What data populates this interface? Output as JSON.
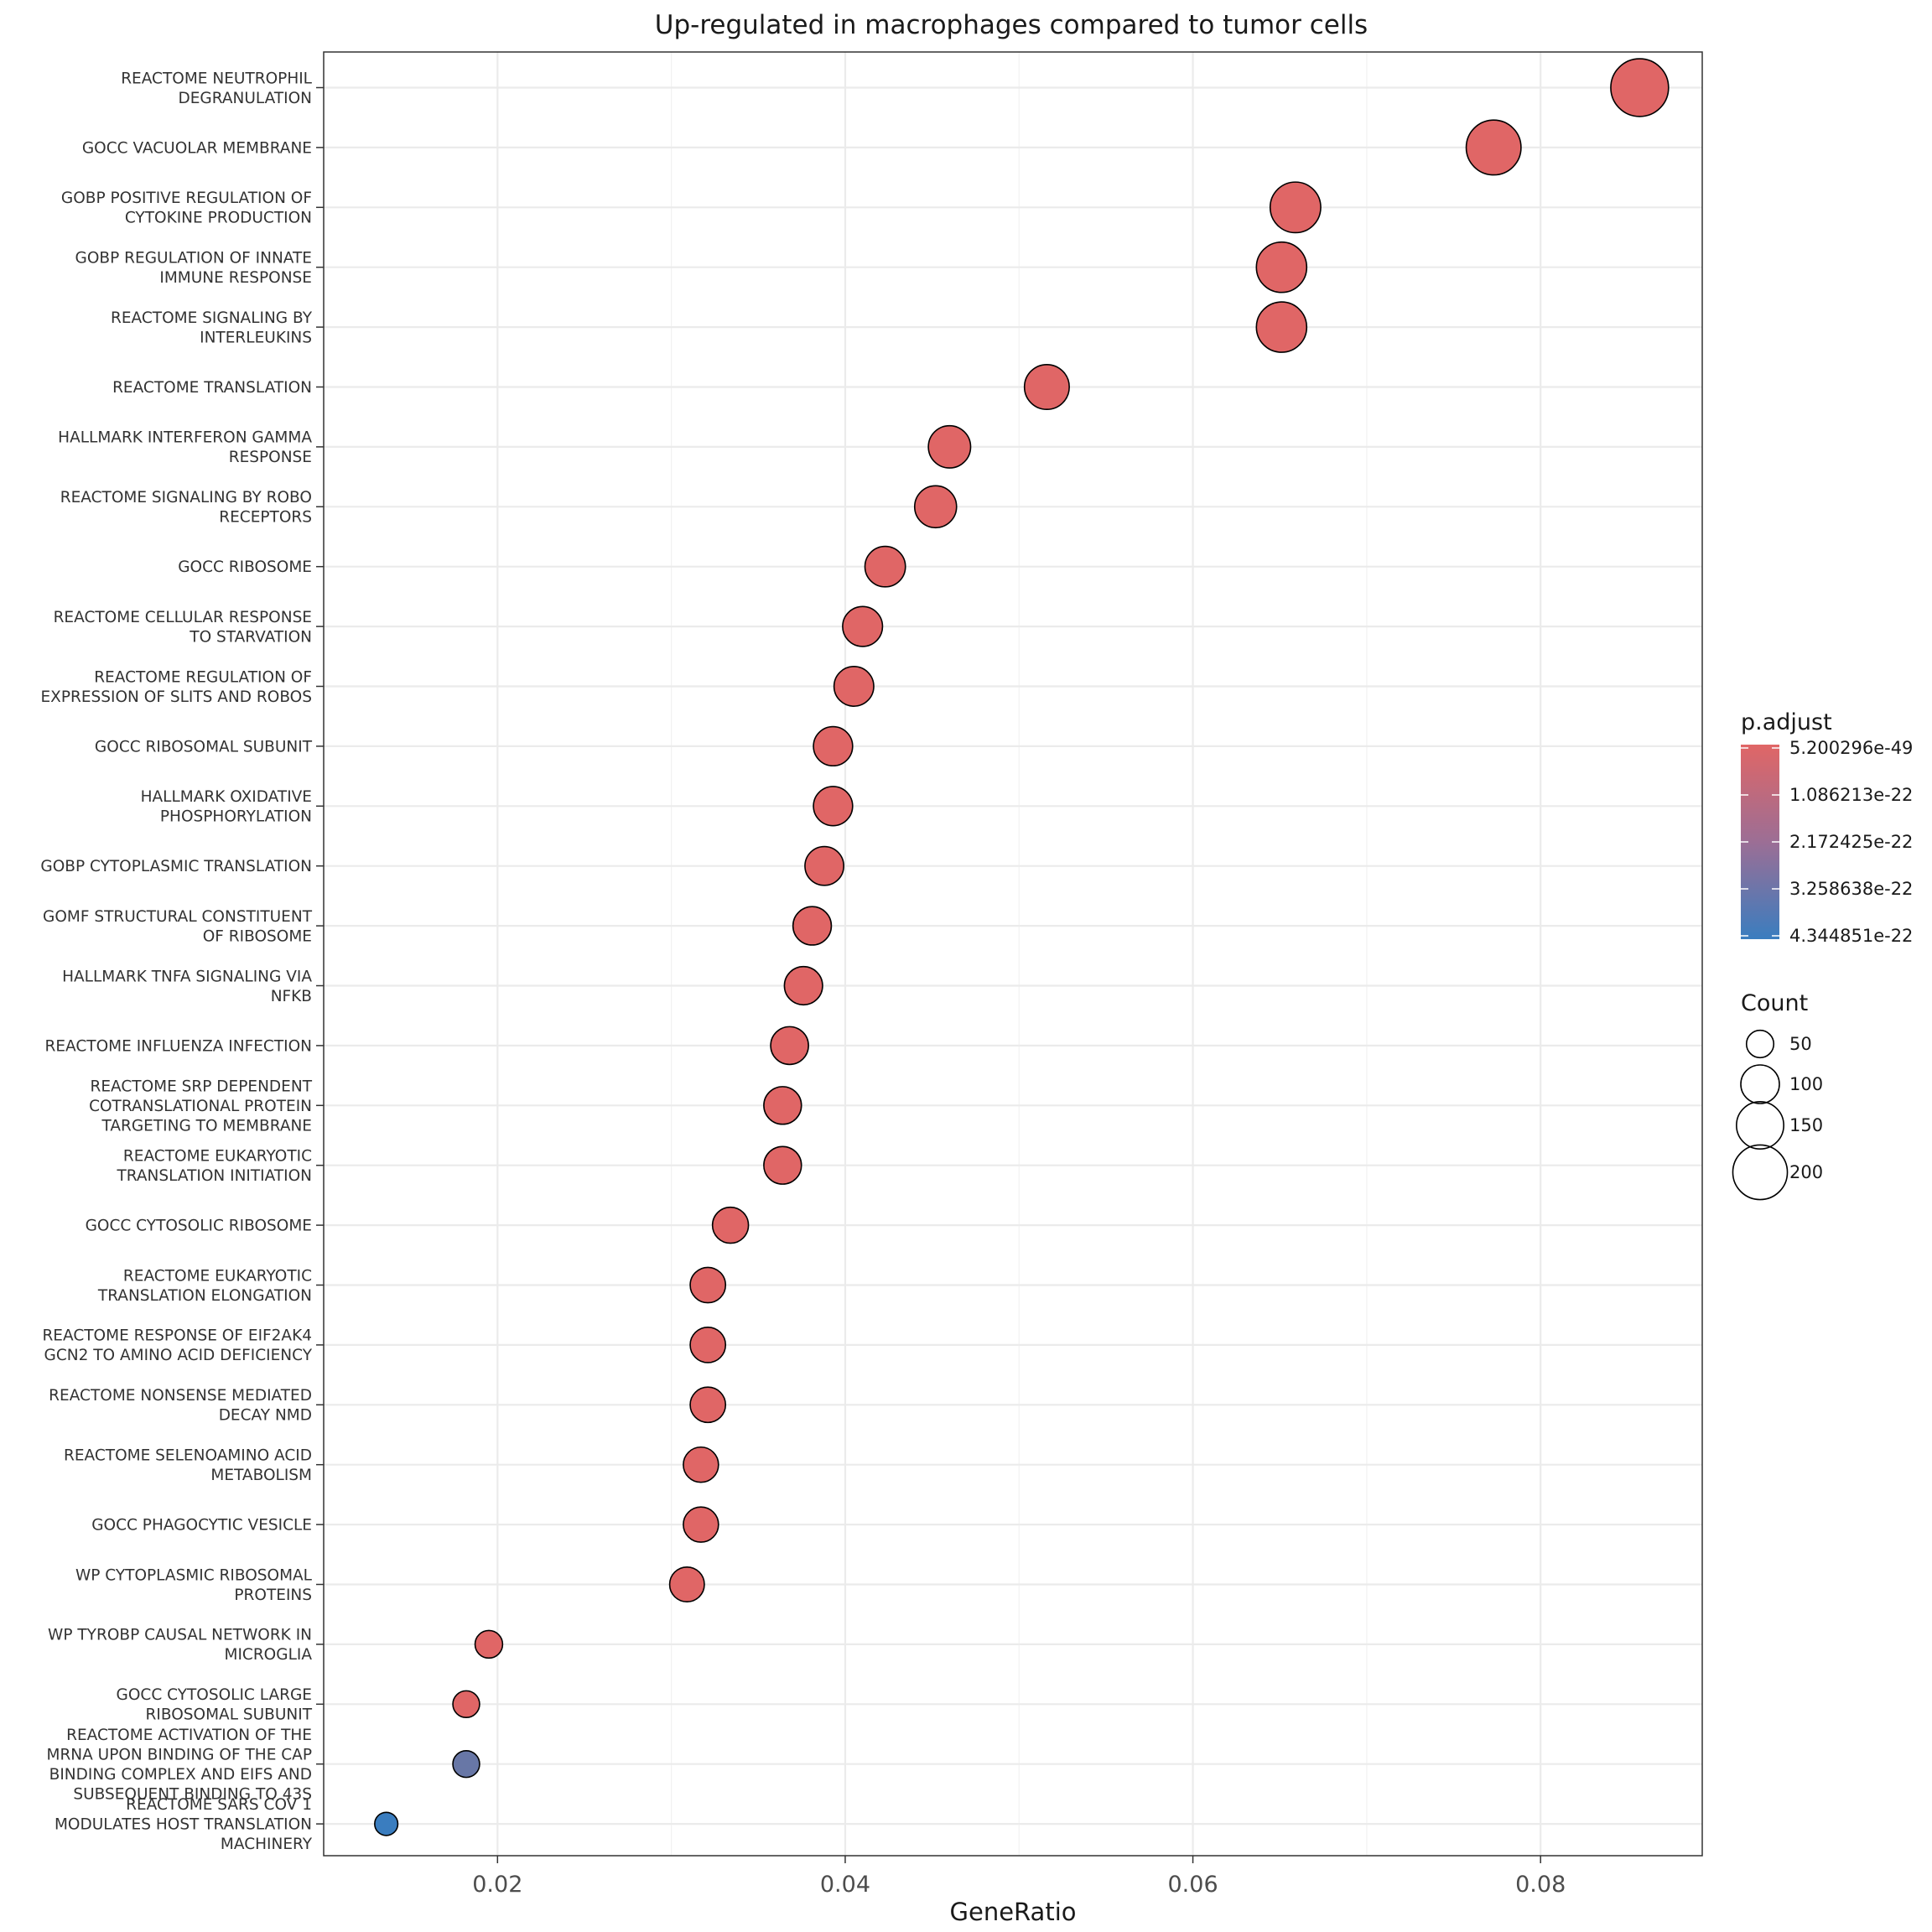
{
  "chart_data": {
    "type": "scatter",
    "title": "Up-regulated in macrophages compared to tumor cells",
    "xlabel": "GeneRatio",
    "ylabel": "",
    "xlim": [
      0.01,
      0.0893
    ],
    "xticks": [
      0.02,
      0.04,
      0.06,
      0.08
    ],
    "xtick_labels": [
      "0.02",
      "0.04",
      "0.06",
      "0.08"
    ],
    "grid": true,
    "color_scale": {
      "title": "p.adjust",
      "low_color": "#e06666",
      "high_color": "#3a7dbf",
      "labels": [
        "5.200296e-49",
        "1.086213e-22",
        "2.172425e-22",
        "3.258638e-22",
        "4.344851e-22"
      ]
    },
    "size_legend": {
      "title": "Count",
      "labels": [
        "50",
        "100",
        "150",
        "200"
      ],
      "values": [
        50,
        100,
        150,
        200
      ]
    },
    "legend_position": "right",
    "points": [
      {
        "label": [
          "REACTOME NEUTROPHIL",
          "DEGRANULATION"
        ],
        "x": 0.0857,
        "count": 224,
        "padj_frac": 0.0
      },
      {
        "label": [
          "GOCC VACUOLAR MEMBRANE"
        ],
        "x": 0.0773,
        "count": 202,
        "padj_frac": 0.0
      },
      {
        "label": [
          "GOBP POSITIVE REGULATION OF",
          "CYTOKINE PRODUCTION"
        ],
        "x": 0.0659,
        "count": 172,
        "padj_frac": 0.0
      },
      {
        "label": [
          "GOBP REGULATION OF INNATE",
          "IMMUNE RESPONSE"
        ],
        "x": 0.0651,
        "count": 170,
        "padj_frac": 0.0
      },
      {
        "label": [
          "REACTOME SIGNALING BY",
          "INTERLEUKINS"
        ],
        "x": 0.0651,
        "count": 170,
        "padj_frac": 0.0
      },
      {
        "label": [
          "REACTOME TRANSLATION"
        ],
        "x": 0.0516,
        "count": 135,
        "padj_frac": 0.0
      },
      {
        "label": [
          "HALLMARK INTERFERON GAMMA",
          "RESPONSE"
        ],
        "x": 0.046,
        "count": 120,
        "padj_frac": 0.0
      },
      {
        "label": [
          "REACTOME SIGNALING BY ROBO",
          "RECEPTORS"
        ],
        "x": 0.0452,
        "count": 118,
        "padj_frac": 0.0
      },
      {
        "label": [
          "GOCC RIBOSOME"
        ],
        "x": 0.0423,
        "count": 110,
        "padj_frac": 0.0
      },
      {
        "label": [
          "REACTOME CELLULAR RESPONSE",
          "TO STARVATION"
        ],
        "x": 0.041,
        "count": 107,
        "padj_frac": 0.0
      },
      {
        "label": [
          "REACTOME REGULATION OF",
          "EXPRESSION OF SLITS AND ROBOS"
        ],
        "x": 0.0405,
        "count": 106,
        "padj_frac": 0.0
      },
      {
        "label": [
          "GOCC RIBOSOMAL SUBUNIT"
        ],
        "x": 0.0393,
        "count": 103,
        "padj_frac": 0.0
      },
      {
        "label": [
          "HALLMARK OXIDATIVE",
          "PHOSPHORYLATION"
        ],
        "x": 0.0393,
        "count": 103,
        "padj_frac": 0.0
      },
      {
        "label": [
          "GOBP CYTOPLASMIC TRANSLATION"
        ],
        "x": 0.0388,
        "count": 101,
        "padj_frac": 0.0
      },
      {
        "label": [
          "GOMF STRUCTURAL CONSTITUENT",
          "OF RIBOSOME"
        ],
        "x": 0.0381,
        "count": 99,
        "padj_frac": 0.0
      },
      {
        "label": [
          "HALLMARK TNFA SIGNALING VIA",
          "NFKB"
        ],
        "x": 0.0376,
        "count": 98,
        "padj_frac": 0.0
      },
      {
        "label": [
          "REACTOME INFLUENZA INFECTION"
        ],
        "x": 0.0368,
        "count": 96,
        "padj_frac": 0.0
      },
      {
        "label": [
          "REACTOME SRP DEPENDENT",
          "COTRANSLATIONAL PROTEIN",
          "TARGETING TO MEMBRANE"
        ],
        "x": 0.0364,
        "count": 95,
        "padj_frac": 0.0
      },
      {
        "label": [
          "REACTOME EUKARYOTIC",
          "TRANSLATION INITIATION"
        ],
        "x": 0.0364,
        "count": 95,
        "padj_frac": 0.0
      },
      {
        "label": [
          "GOCC CYTOSOLIC RIBOSOME"
        ],
        "x": 0.0334,
        "count": 87,
        "padj_frac": 0.0
      },
      {
        "label": [
          "REACTOME EUKARYOTIC",
          "TRANSLATION ELONGATION"
        ],
        "x": 0.0321,
        "count": 84,
        "padj_frac": 0.0
      },
      {
        "label": [
          "REACTOME RESPONSE OF EIF2AK4",
          "GCN2 TO AMINO ACID DEFICIENCY"
        ],
        "x": 0.0321,
        "count": 84,
        "padj_frac": 0.0
      },
      {
        "label": [
          "REACTOME NONSENSE MEDIATED",
          "DECAY NMD"
        ],
        "x": 0.0321,
        "count": 84,
        "padj_frac": 0.0
      },
      {
        "label": [
          "REACTOME SELENOAMINO ACID",
          "METABOLISM"
        ],
        "x": 0.0317,
        "count": 83,
        "padj_frac": 0.0
      },
      {
        "label": [
          "GOCC PHAGOCYTIC VESICLE"
        ],
        "x": 0.0317,
        "count": 83,
        "padj_frac": 0.0
      },
      {
        "label": [
          "WP CYTOPLASMIC RIBOSOMAL",
          "PROTEINS"
        ],
        "x": 0.0309,
        "count": 81,
        "padj_frac": 0.0
      },
      {
        "label": [
          "WP TYROBP CAUSAL NETWORK IN",
          "MICROGLIA"
        ],
        "x": 0.0195,
        "count": 51,
        "padj_frac": 0.0
      },
      {
        "label": [
          "GOCC CYTOSOLIC LARGE",
          "RIBOSOMAL SUBUNIT"
        ],
        "x": 0.0182,
        "count": 48,
        "padj_frac": 0.0
      },
      {
        "label": [
          "REACTOME ACTIVATION OF THE",
          "MRNA UPON BINDING OF THE CAP",
          "BINDING COMPLEX AND EIFS AND",
          "SUBSEQUENT BINDING TO 43S"
        ],
        "x": 0.0182,
        "count": 48,
        "padj_frac": 0.72
      },
      {
        "label": [
          "REACTOME SARS COV 1",
          "MODULATES HOST TRANSLATION",
          "MACHINERY"
        ],
        "x": 0.0136,
        "count": 36,
        "padj_frac": 1.0
      }
    ]
  }
}
